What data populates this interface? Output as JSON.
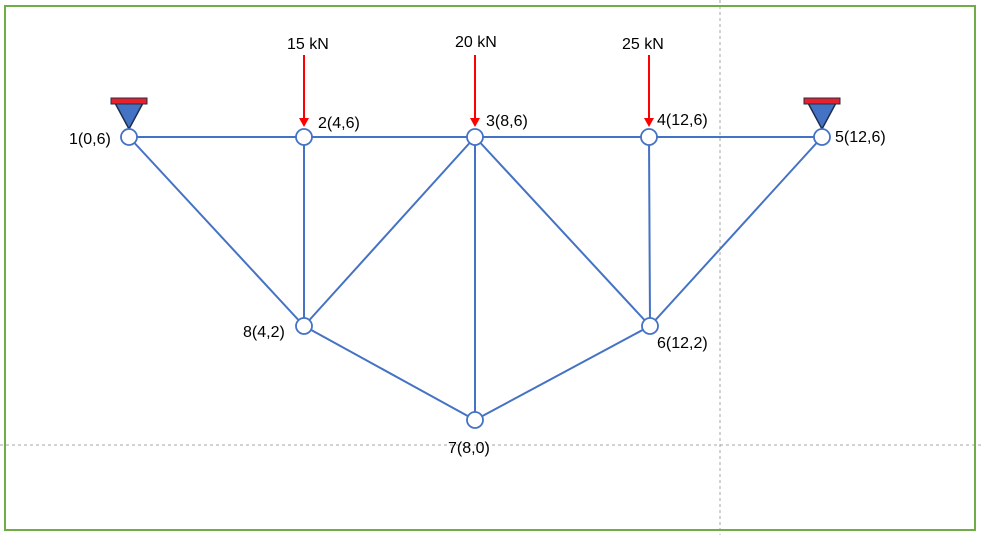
{
  "colors": {
    "frame": "#70ad47",
    "member": "#4472c4",
    "node_fill": "#ffffff",
    "load_arrow": "#ff0000",
    "support_fill": "#4472c4",
    "support_cap": "#e8202a",
    "guide": "#a6a6a6"
  },
  "nodes": [
    {
      "id": 1,
      "label": "1(0,6)",
      "support": true
    },
    {
      "id": 2,
      "label": "2(4,6)"
    },
    {
      "id": 3,
      "label": "3(8,6)"
    },
    {
      "id": 4,
      "label": "4(12,6)"
    },
    {
      "id": 5,
      "label": "5(12,6)",
      "support": true
    },
    {
      "id": 6,
      "label": "6(12,2)"
    },
    {
      "id": 7,
      "label": "7(8,0)"
    },
    {
      "id": 8,
      "label": "8(4,2)"
    }
  ],
  "members": [
    [
      1,
      2
    ],
    [
      2,
      3
    ],
    [
      3,
      4
    ],
    [
      4,
      5
    ],
    [
      1,
      8
    ],
    [
      2,
      8
    ],
    [
      8,
      3
    ],
    [
      8,
      7
    ],
    [
      3,
      7
    ],
    [
      3,
      6
    ],
    [
      4,
      6
    ],
    [
      6,
      5
    ],
    [
      6,
      7
    ]
  ],
  "loads": [
    {
      "node": 2,
      "label": "15 kN"
    },
    {
      "node": 3,
      "label": "20 kN"
    },
    {
      "node": 4,
      "label": "25 kN"
    }
  ]
}
